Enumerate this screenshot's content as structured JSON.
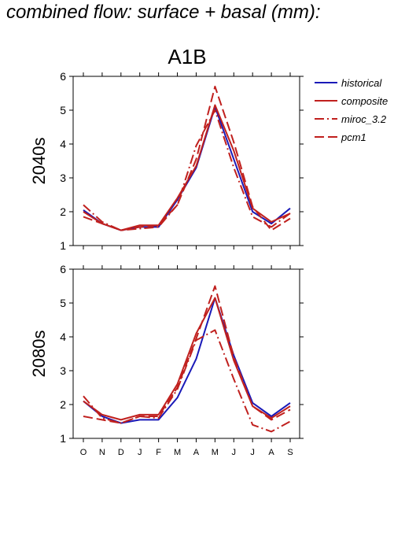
{
  "page_title": "combined flow: surface + basal (mm):",
  "chart_data": {
    "type": "line",
    "scenario": "A1B",
    "categories": [
      "O",
      "N",
      "D",
      "J",
      "F",
      "M",
      "A",
      "M",
      "J",
      "J",
      "A",
      "S"
    ],
    "ylim": [
      1,
      6
    ],
    "yticks": [
      1,
      2,
      3,
      4,
      5,
      6
    ],
    "grid": false,
    "legend_position": "top-right",
    "legend": [
      {
        "name": "historical",
        "color": "#1a1ab8",
        "dash": "solid"
      },
      {
        "name": "composite",
        "color": "#c0201e",
        "dash": "solid"
      },
      {
        "name": "miroc_3.2",
        "color": "#c0201e",
        "dash": "dashdot"
      },
      {
        "name": "pcm1",
        "color": "#c0201e",
        "dash": "dashed"
      }
    ],
    "panels": [
      {
        "ylabel": "2040s",
        "series": [
          {
            "name": "historical",
            "values": [
              2.05,
              1.65,
              1.45,
              1.55,
              1.55,
              2.35,
              3.3,
              5.1,
              3.55,
              2.0,
              1.65,
              2.1
            ]
          },
          {
            "name": "composite",
            "values": [
              2.0,
              1.65,
              1.45,
              1.6,
              1.6,
              2.4,
              3.35,
              5.15,
              3.8,
              2.1,
              1.7,
              1.95
            ]
          },
          {
            "name": "miroc_3.2",
            "values": [
              2.2,
              1.7,
              1.45,
              1.5,
              1.55,
              2.2,
              3.95,
              5.0,
              3.3,
              1.85,
              1.55,
              1.95
            ]
          },
          {
            "name": "pcm1",
            "values": [
              1.85,
              1.65,
              1.45,
              1.55,
              1.6,
              2.2,
              3.55,
              5.7,
              4.05,
              2.15,
              1.45,
              1.8
            ]
          }
        ]
      },
      {
        "ylabel": "2080s",
        "series": [
          {
            "name": "historical",
            "values": [
              2.1,
              1.65,
              1.45,
              1.55,
              1.55,
              2.2,
              3.35,
              5.15,
              3.45,
              2.05,
              1.65,
              2.05
            ]
          },
          {
            "name": "composite",
            "values": [
              2.1,
              1.7,
              1.55,
              1.7,
              1.7,
              2.6,
              4.1,
              5.15,
              3.3,
              1.95,
              1.6,
              1.95
            ]
          },
          {
            "name": "miroc_3.2",
            "values": [
              2.25,
              1.6,
              1.45,
              1.65,
              1.6,
              2.45,
              3.9,
              4.2,
              2.75,
              1.4,
              1.2,
              1.5
            ]
          },
          {
            "name": "pcm1",
            "values": [
              1.65,
              1.55,
              1.45,
              1.65,
              1.65,
              2.5,
              3.95,
              5.5,
              3.4,
              1.95,
              1.55,
              1.85
            ]
          }
        ]
      }
    ]
  }
}
